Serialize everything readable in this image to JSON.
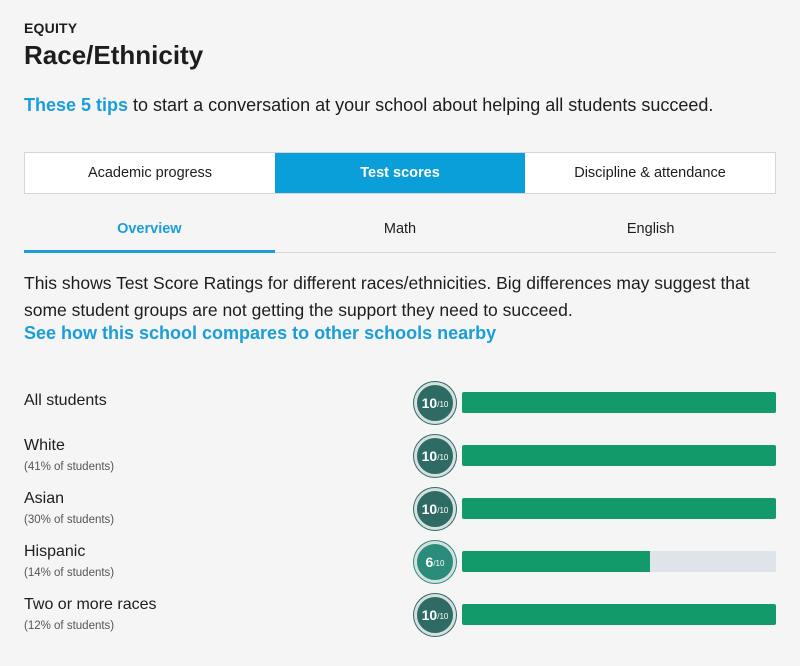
{
  "header": {
    "eyebrow": "EQUITY",
    "title": "Race/Ethnicity"
  },
  "tips": {
    "link": "These 5 tips",
    "text": " to start a conversation at your school about helping all students succeed."
  },
  "tabs": [
    {
      "label": "Academic progress",
      "active": false
    },
    {
      "label": "Test scores",
      "active": true
    },
    {
      "label": "Discipline & attendance",
      "active": false
    }
  ],
  "subtabs": [
    {
      "label": "Overview",
      "active": true
    },
    {
      "label": "Math",
      "active": false
    },
    {
      "label": "English",
      "active": false
    }
  ],
  "description": "This shows Test Score Ratings for different races/ethnicities. Big differences may suggest that some student groups are not getting the support they need to succeed.",
  "compare_link": "See how this school compares to other schools nearby",
  "rating_max_label": "/10",
  "rows": [
    {
      "label": "All students",
      "sub": "",
      "rating": "10",
      "fraction": 1.0
    },
    {
      "label": "White",
      "sub": "(41% of students)",
      "rating": "10",
      "fraction": 1.0
    },
    {
      "label": "Asian",
      "sub": "(30% of students)",
      "rating": "10",
      "fraction": 1.0
    },
    {
      "label": "Hispanic",
      "sub": "(14% of students)",
      "rating": "6",
      "fraction": 0.6
    },
    {
      "label": "Two or more races",
      "sub": "(12% of students)",
      "rating": "10",
      "fraction": 1.0
    }
  ],
  "colors": {
    "accent": "#1a9dd9",
    "tab_active": "#0a9fd8",
    "bar_fill": "#129a6b",
    "bar_track": "#dfe3ea",
    "badge_high": "#2d6b64",
    "badge_mid": "#2a8c7a"
  }
}
